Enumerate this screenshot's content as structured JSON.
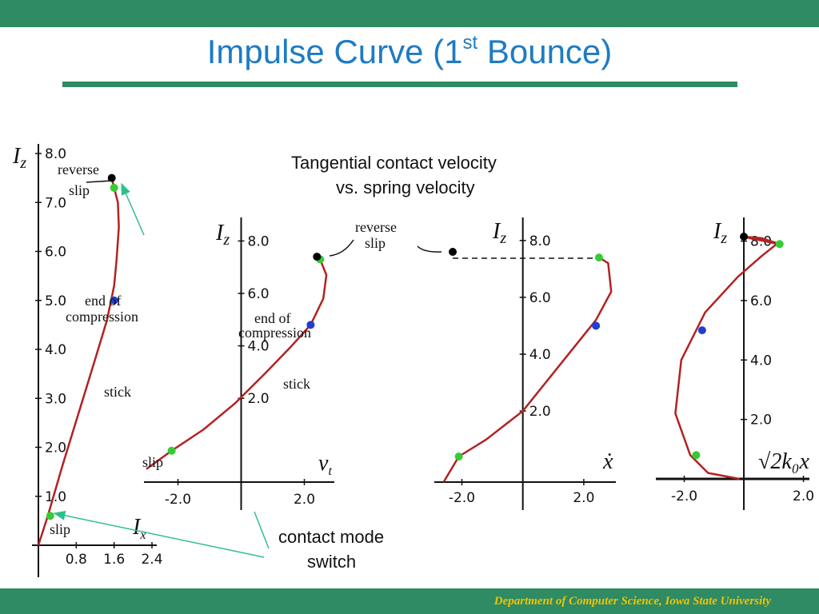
{
  "slide": {
    "title_pre": "Impulse Curve (1",
    "title_sup": "st",
    "title_post": " Bounce)",
    "caption_top_line1": "Tangential contact velocity",
    "caption_top_line2": "vs.  spring velocity",
    "caption_bottom_line1": "contact mode",
    "caption_bottom_line2": "switch",
    "footer": "Department of Computer Science, Iowa State University",
    "colors": {
      "bar": "#2e8b63",
      "title": "#1e7bc4",
      "footer": "#f2c200",
      "curve": "#b22222",
      "point_green": "#33cc33",
      "point_blue": "#1f3fd0",
      "point_black": "#000000",
      "arrow": "#2fbf8a"
    }
  },
  "chart_data": [
    {
      "type": "line",
      "y_label": "Iz",
      "x_label": "Ix",
      "x_ticks": [
        "0.8",
        "1.6",
        "2.4"
      ],
      "y_ticks": [
        "1.0",
        "2.0",
        "3.0",
        "4.0",
        "5.0",
        "6.0",
        "7.0",
        "8.0"
      ],
      "xlim": [
        0,
        2.4
      ],
      "ylim": [
        0,
        8.0
      ],
      "curve": [
        [
          0,
          0
        ],
        [
          0.2,
          0.6
        ],
        [
          0.5,
          1.6
        ],
        [
          0.85,
          2.7
        ],
        [
          1.2,
          3.8
        ],
        [
          1.45,
          4.6
        ],
        [
          1.6,
          5.3
        ],
        [
          1.65,
          5.8
        ],
        [
          1.7,
          6.5
        ],
        [
          1.68,
          7.0
        ],
        [
          1.6,
          7.3
        ],
        [
          1.55,
          7.5
        ]
      ],
      "points": [
        {
          "x": 0.25,
          "y": 0.6,
          "color": "green"
        },
        {
          "x": 1.6,
          "y": 5.0,
          "color": "blue"
        },
        {
          "x": 1.6,
          "y": 7.3,
          "color": "green"
        },
        {
          "x": 1.55,
          "y": 7.5,
          "color": "black"
        }
      ],
      "annotations": {
        "reverse": "reverse",
        "slip_top": "slip",
        "end_of": "end  of",
        "compression": "compression",
        "stick": "stick",
        "slip_bottom": "slip"
      }
    },
    {
      "type": "line",
      "y_label": "Iz",
      "x_label": "vt",
      "x_ticks": [
        "-2.0",
        "2.0"
      ],
      "y_ticks": [
        "2.0",
        "4.0",
        "6.0",
        "8.0"
      ],
      "xlim": [
        -3.0,
        3.0
      ],
      "ylim": [
        -0.8,
        8.5
      ],
      "curve": [
        [
          -3.0,
          -0.7
        ],
        [
          -2.2,
          0.0
        ],
        [
          -1.2,
          0.8
        ],
        [
          -0.2,
          1.8
        ],
        [
          0.8,
          3.0
        ],
        [
          1.6,
          4.0
        ],
        [
          2.2,
          4.8
        ],
        [
          2.6,
          5.8
        ],
        [
          2.7,
          6.7
        ],
        [
          2.5,
          7.3
        ],
        [
          2.4,
          7.4
        ]
      ],
      "points": [
        {
          "x": -2.2,
          "y": 0.0,
          "color": "green"
        },
        {
          "x": 2.2,
          "y": 4.8,
          "color": "blue"
        },
        {
          "x": 2.5,
          "y": 7.3,
          "color": "green"
        },
        {
          "x": 2.4,
          "y": 7.4,
          "color": "black"
        }
      ],
      "annotations": {
        "reverse": "reverse",
        "slip_top": "slip",
        "end_of": "end of",
        "compression": "compression",
        "stick": "stick",
        "slip_bottom": "slip"
      }
    },
    {
      "type": "line",
      "y_label": "Iz",
      "x_label": "ẋ",
      "x_ticks": [
        "-2.0",
        "2.0"
      ],
      "y_ticks": [
        "2.0",
        "4.0",
        "6.0",
        "8.0"
      ],
      "xlim": [
        -2.8,
        3.0
      ],
      "ylim": [
        -0.5,
        8.5
      ],
      "curve": [
        [
          -2.6,
          -0.5
        ],
        [
          -2.1,
          0.4
        ],
        [
          -1.2,
          1.0
        ],
        [
          0.0,
          2.0
        ],
        [
          1.2,
          3.6
        ],
        [
          2.4,
          5.2
        ],
        [
          2.9,
          6.2
        ],
        [
          2.8,
          7.2
        ],
        [
          2.5,
          7.4
        ]
      ],
      "points": [
        {
          "x": -2.1,
          "y": 0.4,
          "color": "green"
        },
        {
          "x": 2.4,
          "y": 5.0,
          "color": "blue"
        },
        {
          "x": 2.5,
          "y": 7.4,
          "color": "green"
        },
        {
          "x": -2.3,
          "y": 7.6,
          "color": "black"
        }
      ],
      "annotations": {}
    },
    {
      "type": "line",
      "y_label": "Iz",
      "x_label": "√2k₀x",
      "x_ticks": [
        "-2.0",
        "2.0"
      ],
      "y_ticks": [
        "2.0",
        "4.0",
        "6.0",
        "8.0"
      ],
      "xlim": [
        -2.9,
        2.2
      ],
      "ylim": [
        0,
        8.5
      ],
      "curve": [
        [
          -0.15,
          0.0
        ],
        [
          -1.2,
          0.2
        ],
        [
          -1.8,
          0.8
        ],
        [
          -2.3,
          2.2
        ],
        [
          -2.1,
          4.0
        ],
        [
          -1.3,
          5.6
        ],
        [
          -0.2,
          6.8
        ],
        [
          0.6,
          7.5
        ],
        [
          1.1,
          7.9
        ],
        [
          1.2,
          7.9
        ],
        [
          0.6,
          8.1
        ],
        [
          0.0,
          8.15
        ]
      ],
      "points": [
        {
          "x": -1.6,
          "y": 0.8,
          "color": "green"
        },
        {
          "x": -1.4,
          "y": 5.0,
          "color": "blue"
        },
        {
          "x": 1.2,
          "y": 7.9,
          "color": "green"
        },
        {
          "x": 0.0,
          "y": 8.15,
          "color": "black"
        }
      ],
      "annotations": {}
    }
  ]
}
